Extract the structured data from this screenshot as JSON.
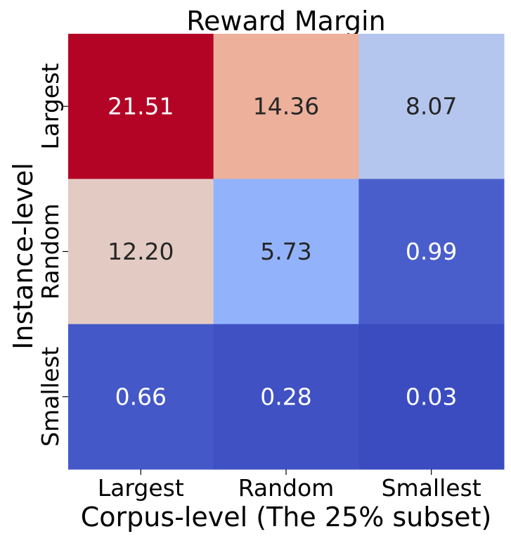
{
  "chart_data": {
    "type": "heatmap",
    "title": "Reward Margin",
    "xlabel": "Corpus-level (The 25% subset)",
    "ylabel": "Instance-level",
    "x_categories": [
      "Largest",
      "Random",
      "Smallest"
    ],
    "y_categories": [
      "Largest",
      "Random",
      "Smallest"
    ],
    "values": [
      [
        21.51,
        14.36,
        8.07
      ],
      [
        12.2,
        5.73,
        0.99
      ],
      [
        0.66,
        0.28,
        0.03
      ]
    ],
    "value_format": 2,
    "colormap": "coolwarm",
    "color_range": [
      0.03,
      21.51
    ],
    "colorbar": false,
    "annotations": true,
    "text_color_dark": "#262626",
    "text_color_light": "#ffffff"
  }
}
